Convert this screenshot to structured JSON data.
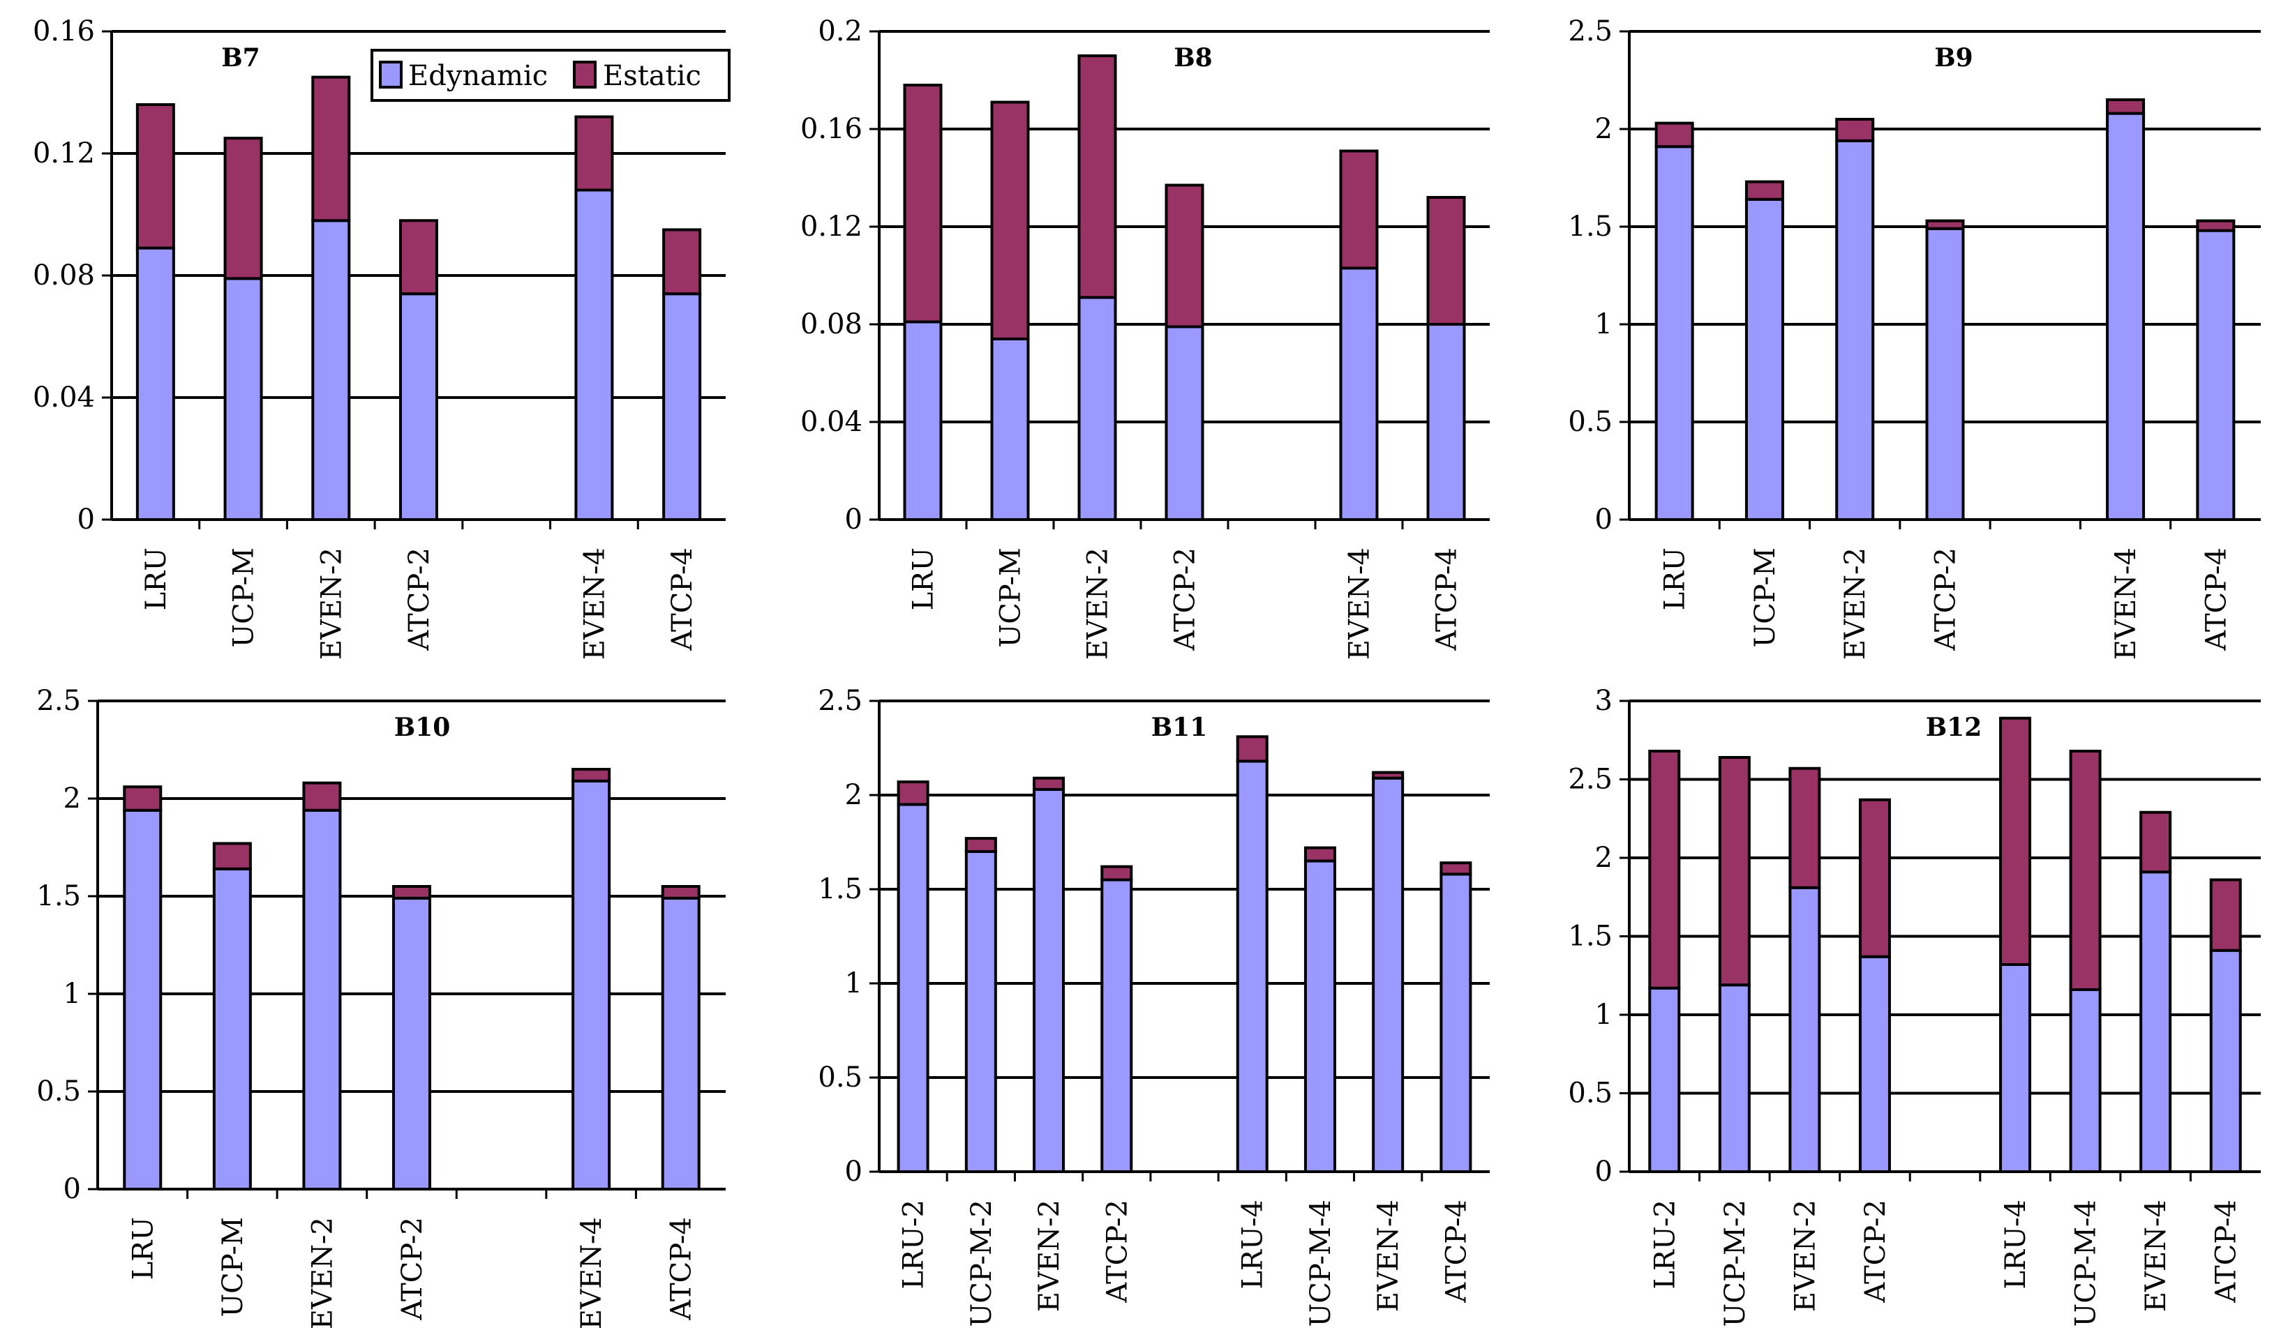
{
  "colors": {
    "dynamic": "#9999ff",
    "static": "#993366"
  },
  "legend": {
    "dynamic_label": "Edynamic",
    "static_label": "Estatic"
  },
  "chart_data": [
    {
      "type": "stacked-bar",
      "title": "B7",
      "ylim": [
        0,
        0.16
      ],
      "yticks": [
        "0",
        "0.04",
        "0.08",
        "0.12",
        "0.16"
      ],
      "categories": [
        "LRU",
        "UCP-M",
        "EVEN-2",
        "ATCP-2",
        "",
        "EVEN-4",
        "ATCP-4"
      ],
      "series": [
        {
          "name": "Edynamic",
          "values": [
            0.089,
            0.079,
            0.098,
            0.074,
            null,
            0.108,
            0.074
          ]
        },
        {
          "name": "Estatic",
          "values": [
            0.047,
            0.046,
            0.047,
            0.024,
            null,
            0.024,
            0.021
          ]
        }
      ],
      "legend_position": "top-right"
    },
    {
      "type": "stacked-bar",
      "title": "B8",
      "ylim": [
        0,
        0.2
      ],
      "yticks": [
        "0",
        "0.04",
        "0.08",
        "0.12",
        "0.16",
        "0.2"
      ],
      "categories": [
        "LRU",
        "UCP-M",
        "EVEN-2",
        "ATCP-2",
        "",
        "EVEN-4",
        "ATCP-4"
      ],
      "series": [
        {
          "name": "Edynamic",
          "values": [
            0.081,
            0.074,
            0.091,
            0.079,
            null,
            0.103,
            0.08
          ]
        },
        {
          "name": "Estatic",
          "values": [
            0.097,
            0.097,
            0.099,
            0.058,
            null,
            0.048,
            0.052
          ]
        }
      ]
    },
    {
      "type": "stacked-bar",
      "title": "B9",
      "ylim": [
        0,
        2.5
      ],
      "yticks": [
        "0",
        "0.5",
        "1",
        "1.5",
        "2",
        "2.5"
      ],
      "categories": [
        "LRU",
        "UCP-M",
        "EVEN-2",
        "ATCP-2",
        "",
        "EVEN-4",
        "ATCP-4"
      ],
      "series": [
        {
          "name": "Edynamic",
          "values": [
            1.91,
            1.64,
            1.94,
            1.49,
            null,
            2.08,
            1.48
          ]
        },
        {
          "name": "Estatic",
          "values": [
            0.12,
            0.09,
            0.11,
            0.04,
            null,
            0.07,
            0.05
          ]
        }
      ]
    },
    {
      "type": "stacked-bar",
      "title": "B10",
      "ylim": [
        0,
        2.5
      ],
      "yticks": [
        "0",
        "0.5",
        "1",
        "1.5",
        "2",
        "2.5"
      ],
      "categories": [
        "LRU",
        "UCP-M",
        "EVEN-2",
        "ATCP-2",
        "",
        "EVEN-4",
        "ATCP-4"
      ],
      "series": [
        {
          "name": "Edynamic",
          "values": [
            1.94,
            1.64,
            1.94,
            1.49,
            null,
            2.09,
            1.49
          ]
        },
        {
          "name": "Estatic",
          "values": [
            0.12,
            0.13,
            0.14,
            0.06,
            null,
            0.06,
            0.06
          ]
        }
      ]
    },
    {
      "type": "stacked-bar",
      "title": "B11",
      "ylim": [
        0,
        2.5
      ],
      "yticks": [
        "0",
        "0.5",
        "1",
        "1.5",
        "2",
        "2.5"
      ],
      "categories": [
        "LRU-2",
        "UCP-M-2",
        "EVEN-2",
        "ATCP-2",
        "",
        "LRU-4",
        "UCP-M-4",
        "EVEN-4",
        "ATCP-4"
      ],
      "series": [
        {
          "name": "Edynamic",
          "values": [
            1.95,
            1.7,
            2.03,
            1.55,
            null,
            2.18,
            1.65,
            2.09,
            1.58
          ]
        },
        {
          "name": "Estatic",
          "values": [
            0.12,
            0.07,
            0.06,
            0.07,
            null,
            0.13,
            0.07,
            0.03,
            0.06
          ]
        }
      ]
    },
    {
      "type": "stacked-bar",
      "title": "B12",
      "ylim": [
        0,
        3
      ],
      "yticks": [
        "0",
        "0.5",
        "1",
        "1.5",
        "2",
        "2.5",
        "3"
      ],
      "categories": [
        "LRU-2",
        "UCP-M-2",
        "EVEN-2",
        "ATCP-2",
        "",
        "LRU-4",
        "UCP-M-4",
        "EVEN-4",
        "ATCP-4"
      ],
      "series": [
        {
          "name": "Edynamic",
          "values": [
            1.17,
            1.19,
            1.81,
            1.37,
            null,
            1.32,
            1.16,
            1.91,
            1.41
          ]
        },
        {
          "name": "Estatic",
          "values": [
            1.51,
            1.45,
            0.76,
            1.0,
            null,
            1.57,
            1.52,
            0.38,
            0.45
          ]
        }
      ]
    }
  ]
}
